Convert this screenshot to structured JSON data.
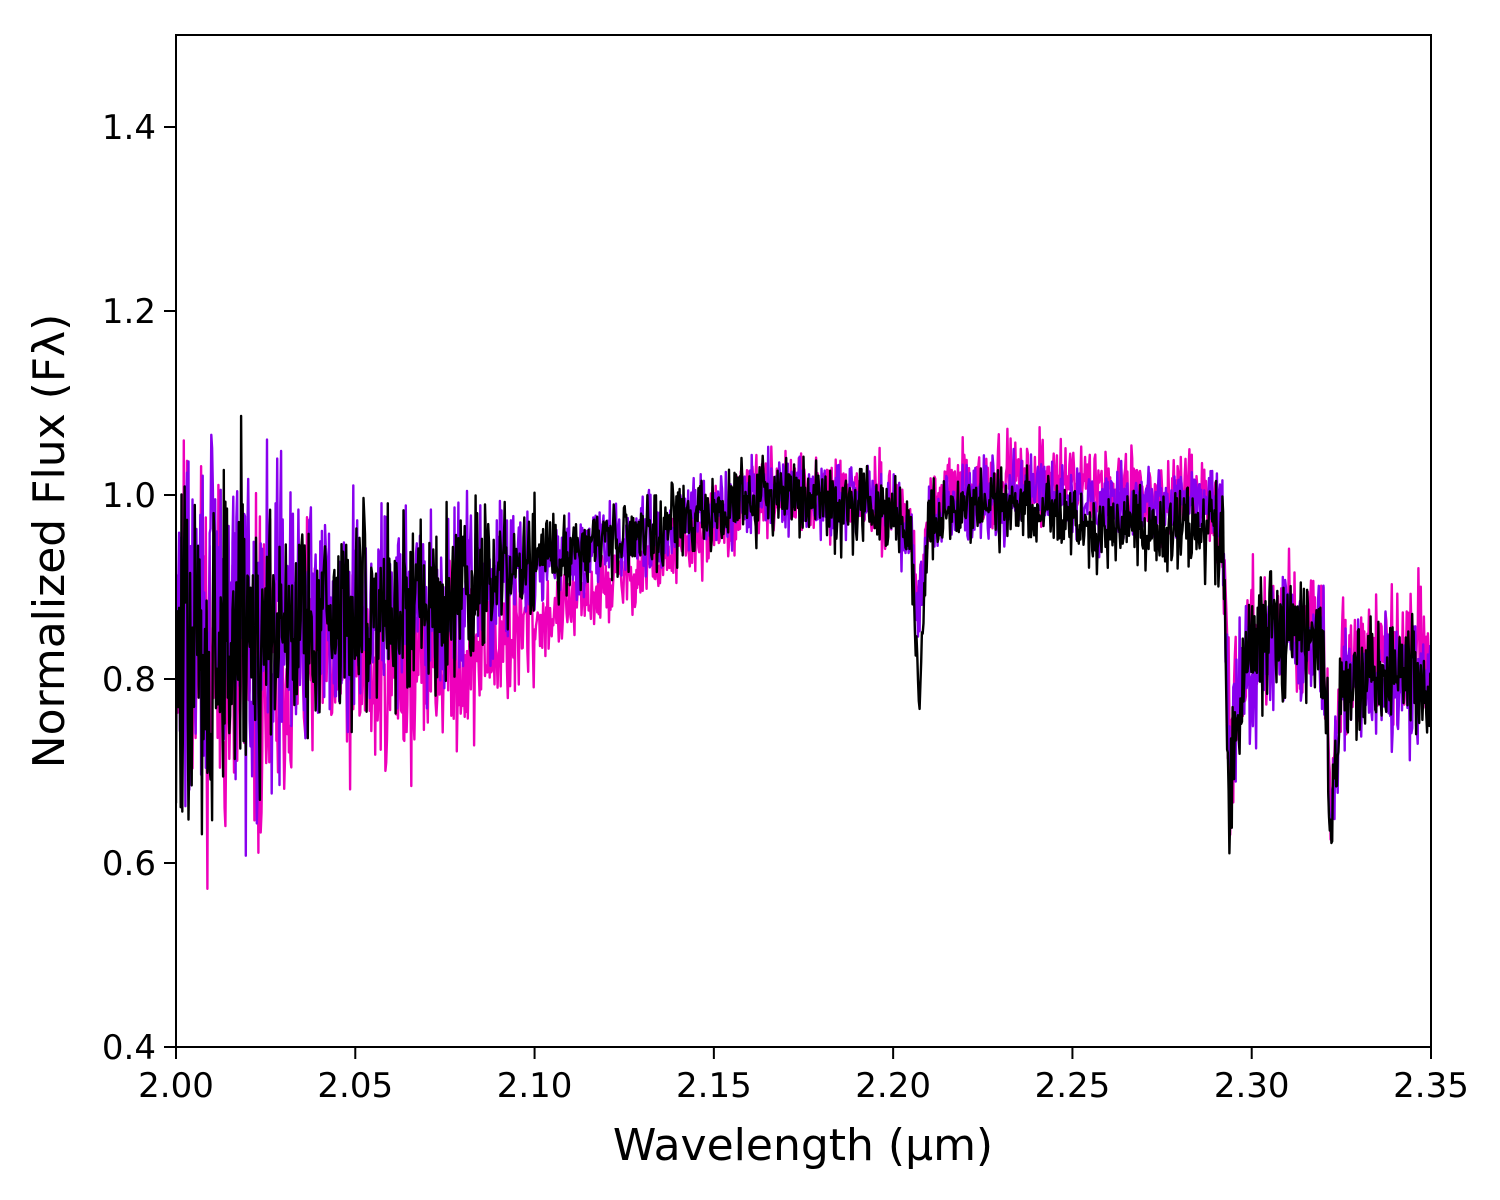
{
  "chart_data": {
    "type": "line",
    "title": "",
    "xlabel": "Wavelength (μm)",
    "ylabel": "Normalized Flux (Fλ)",
    "xlim": [
      2.0,
      2.35
    ],
    "ylim": [
      0.4,
      1.5
    ],
    "x_ticks": [
      "2.00",
      "2.05",
      "2.10",
      "2.15",
      "2.20",
      "2.25",
      "2.30",
      "2.35"
    ],
    "y_ticks": [
      "0.4",
      "0.6",
      "0.8",
      "1.0",
      "1.2",
      "1.4"
    ],
    "grid": false,
    "legend": "none",
    "series": [
      {
        "color": "#ee00bb",
        "x": [
          2.0,
          2.005,
          2.01,
          2.015,
          2.02,
          2.025,
          2.03,
          2.035,
          2.04,
          2.045,
          2.05,
          2.055,
          2.06,
          2.065,
          2.07,
          2.075,
          2.08,
          2.085,
          2.09,
          2.095,
          2.1,
          2.105,
          2.11,
          2.115,
          2.12,
          2.125,
          2.13,
          2.135,
          2.14,
          2.145,
          2.15,
          2.155,
          2.16,
          2.165,
          2.17,
          2.175,
          2.18,
          2.185,
          2.19,
          2.195,
          2.2,
          2.205,
          2.207,
          2.21,
          2.215,
          2.22,
          2.225,
          2.23,
          2.235,
          2.24,
          2.245,
          2.25,
          2.255,
          2.26,
          2.265,
          2.27,
          2.275,
          2.28,
          2.285,
          2.29,
          2.292,
          2.294,
          2.296,
          2.3,
          2.305,
          2.31,
          2.315,
          2.32,
          2.322,
          2.325,
          2.33,
          2.335,
          2.34,
          2.345,
          2.35
        ],
        "y": [
          0.88,
          0.85,
          0.83,
          0.8,
          0.79,
          0.79,
          0.8,
          0.81,
          0.81,
          0.8,
          0.8,
          0.8,
          0.81,
          0.81,
          0.82,
          0.82,
          0.82,
          0.83,
          0.84,
          0.85,
          0.86,
          0.87,
          0.88,
          0.89,
          0.9,
          0.91,
          0.92,
          0.93,
          0.94,
          0.95,
          0.97,
          0.98,
          0.99,
          1.0,
          1.0,
          1.0,
          1.0,
          1.0,
          1.0,
          0.99,
          0.99,
          0.96,
          0.88,
          0.98,
          1.0,
          1.01,
          1.01,
          1.02,
          1.02,
          1.02,
          1.02,
          1.02,
          1.01,
          1.01,
          1.01,
          1.0,
          1.0,
          1.0,
          0.99,
          0.98,
          0.96,
          0.7,
          0.8,
          0.84,
          0.85,
          0.86,
          0.85,
          0.84,
          0.66,
          0.82,
          0.83,
          0.83,
          0.83,
          0.83,
          0.83
        ]
      },
      {
        "color": "#8800ee",
        "x": [
          2.0,
          2.005,
          2.01,
          2.015,
          2.02,
          2.025,
          2.03,
          2.035,
          2.04,
          2.045,
          2.05,
          2.055,
          2.06,
          2.065,
          2.07,
          2.075,
          2.08,
          2.085,
          2.09,
          2.095,
          2.1,
          2.105,
          2.11,
          2.115,
          2.12,
          2.125,
          2.13,
          2.135,
          2.14,
          2.145,
          2.15,
          2.155,
          2.16,
          2.165,
          2.17,
          2.175,
          2.18,
          2.185,
          2.19,
          2.195,
          2.2,
          2.205,
          2.207,
          2.21,
          2.215,
          2.22,
          2.225,
          2.23,
          2.235,
          2.24,
          2.245,
          2.25,
          2.255,
          2.26,
          2.265,
          2.27,
          2.275,
          2.28,
          2.285,
          2.29,
          2.292,
          2.294,
          2.296,
          2.3,
          2.305,
          2.31,
          2.315,
          2.32,
          2.322,
          2.325,
          2.33,
          2.335,
          2.34,
          2.345,
          2.35
        ],
        "y": [
          0.85,
          0.86,
          0.87,
          0.87,
          0.86,
          0.86,
          0.87,
          0.87,
          0.88,
          0.87,
          0.88,
          0.88,
          0.88,
          0.89,
          0.89,
          0.89,
          0.9,
          0.9,
          0.91,
          0.91,
          0.92,
          0.93,
          0.93,
          0.94,
          0.95,
          0.95,
          0.96,
          0.96,
          0.97,
          0.98,
          0.98,
          0.99,
          0.99,
          1.0,
          1.0,
          1.0,
          0.99,
          0.99,
          0.99,
          0.99,
          0.99,
          0.95,
          0.86,
          0.97,
          0.99,
          1.0,
          1.0,
          1.0,
          1.0,
          1.0,
          1.0,
          0.99,
          0.99,
          0.99,
          0.99,
          0.99,
          0.99,
          0.99,
          0.99,
          0.99,
          0.97,
          0.7,
          0.79,
          0.82,
          0.84,
          0.85,
          0.84,
          0.83,
          0.62,
          0.79,
          0.79,
          0.8,
          0.79,
          0.78,
          0.78
        ]
      },
      {
        "color": "#000000",
        "x": [
          2.0,
          2.005,
          2.01,
          2.015,
          2.02,
          2.025,
          2.03,
          2.035,
          2.04,
          2.045,
          2.05,
          2.055,
          2.06,
          2.065,
          2.07,
          2.075,
          2.08,
          2.085,
          2.09,
          2.095,
          2.1,
          2.105,
          2.11,
          2.115,
          2.12,
          2.125,
          2.13,
          2.135,
          2.14,
          2.145,
          2.15,
          2.155,
          2.16,
          2.165,
          2.17,
          2.175,
          2.18,
          2.185,
          2.19,
          2.195,
          2.2,
          2.205,
          2.207,
          2.21,
          2.215,
          2.22,
          2.225,
          2.23,
          2.235,
          2.24,
          2.245,
          2.25,
          2.255,
          2.26,
          2.265,
          2.27,
          2.275,
          2.28,
          2.285,
          2.29,
          2.292,
          2.294,
          2.296,
          2.3,
          2.305,
          2.31,
          2.315,
          2.32,
          2.322,
          2.325,
          2.33,
          2.335,
          2.34,
          2.345,
          2.35
        ],
        "y": [
          0.8,
          0.82,
          0.83,
          0.84,
          0.85,
          0.86,
          0.86,
          0.87,
          0.87,
          0.87,
          0.87,
          0.88,
          0.88,
          0.88,
          0.89,
          0.89,
          0.9,
          0.9,
          0.91,
          0.92,
          0.93,
          0.93,
          0.94,
          0.95,
          0.95,
          0.96,
          0.96,
          0.97,
          0.97,
          0.98,
          0.98,
          0.99,
          0.99,
          1.0,
          1.0,
          1.0,
          0.99,
          0.99,
          0.99,
          0.99,
          0.99,
          0.95,
          0.79,
          0.97,
          0.98,
          0.99,
          0.99,
          0.99,
          0.99,
          0.98,
          0.98,
          0.97,
          0.97,
          0.97,
          0.97,
          0.96,
          0.96,
          0.96,
          0.96,
          0.96,
          0.94,
          0.64,
          0.78,
          0.83,
          0.85,
          0.86,
          0.85,
          0.84,
          0.64,
          0.78,
          0.79,
          0.8,
          0.8,
          0.79,
          0.79
        ]
      }
    ]
  }
}
